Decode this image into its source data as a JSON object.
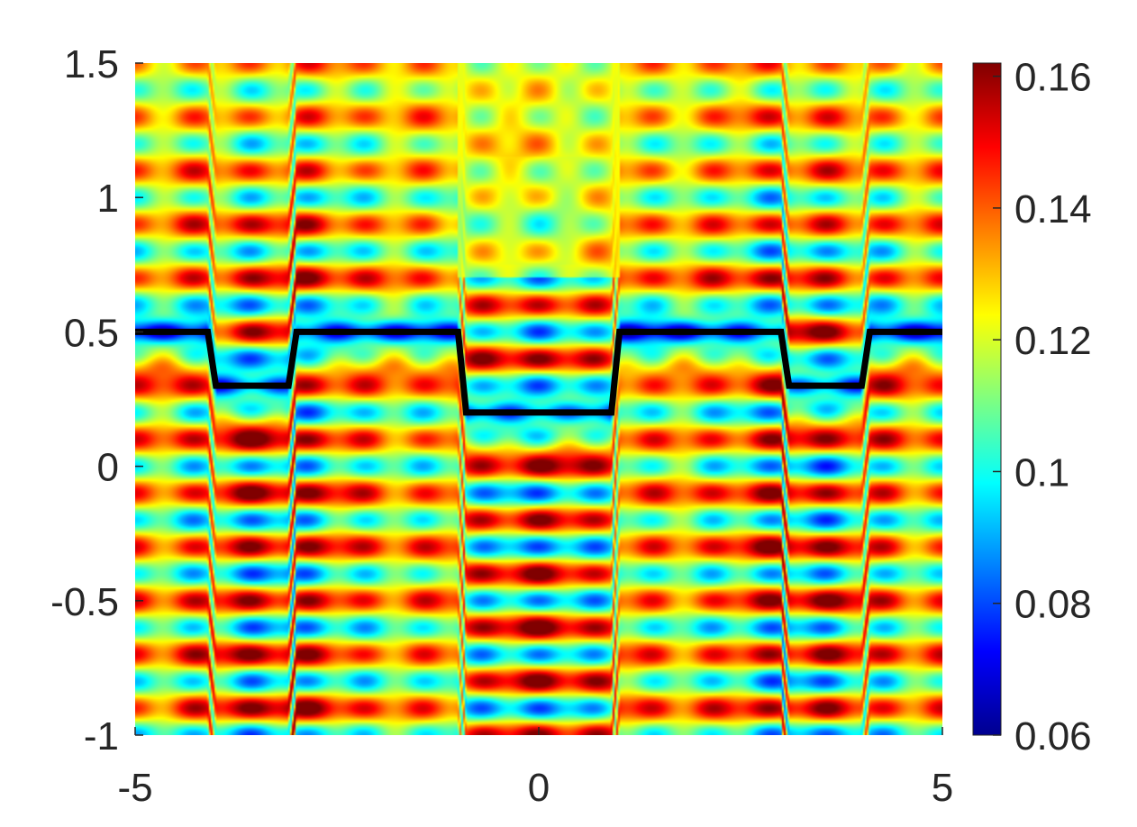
{
  "chart_data": {
    "type": "heatmap",
    "title": "",
    "xlabel": "",
    "ylabel": "",
    "xlim": [
      -5,
      5
    ],
    "ylim": [
      -1,
      1.5
    ],
    "x_ticks": [
      {
        "value": -5,
        "label": "-5"
      },
      {
        "value": 0,
        "label": "0"
      },
      {
        "value": 5,
        "label": "5"
      }
    ],
    "y_ticks": [
      {
        "value": -1,
        "label": "-1"
      },
      {
        "value": -0.5,
        "label": "-0.5"
      },
      {
        "value": 0,
        "label": "0"
      },
      {
        "value": 0.5,
        "label": "0.5"
      },
      {
        "value": 1,
        "label": "1"
      },
      {
        "value": 1.5,
        "label": "1.5"
      }
    ],
    "colormap": "jet",
    "colorbar": {
      "clim": [
        0.06,
        0.162
      ],
      "ticks": [
        {
          "value": 0.06,
          "label": "0.06"
        },
        {
          "value": 0.08,
          "label": "0.08"
        },
        {
          "value": 0.1,
          "label": "0.1"
        },
        {
          "value": 0.12,
          "label": "0.12"
        },
        {
          "value": 0.14,
          "label": "0.14"
        },
        {
          "value": 0.16,
          "label": "0.16"
        }
      ]
    },
    "field_description": {
      "background_value": 0.123,
      "blue_band_along_profile": true,
      "horizontal_stripes_period_y": 0.2,
      "symmetric_about_x0": true
    },
    "overlay_line": {
      "color": "#000000",
      "x": [
        -5,
        -4.1,
        -4.0,
        -3.1,
        -3.0,
        -1.0,
        -0.9,
        0.9,
        1.0,
        3.0,
        3.1,
        4.0,
        4.1,
        5
      ],
      "y": [
        0.5,
        0.5,
        0.3,
        0.3,
        0.5,
        0.5,
        0.2,
        0.2,
        0.5,
        0.5,
        0.3,
        0.3,
        0.5,
        0.5
      ]
    }
  }
}
